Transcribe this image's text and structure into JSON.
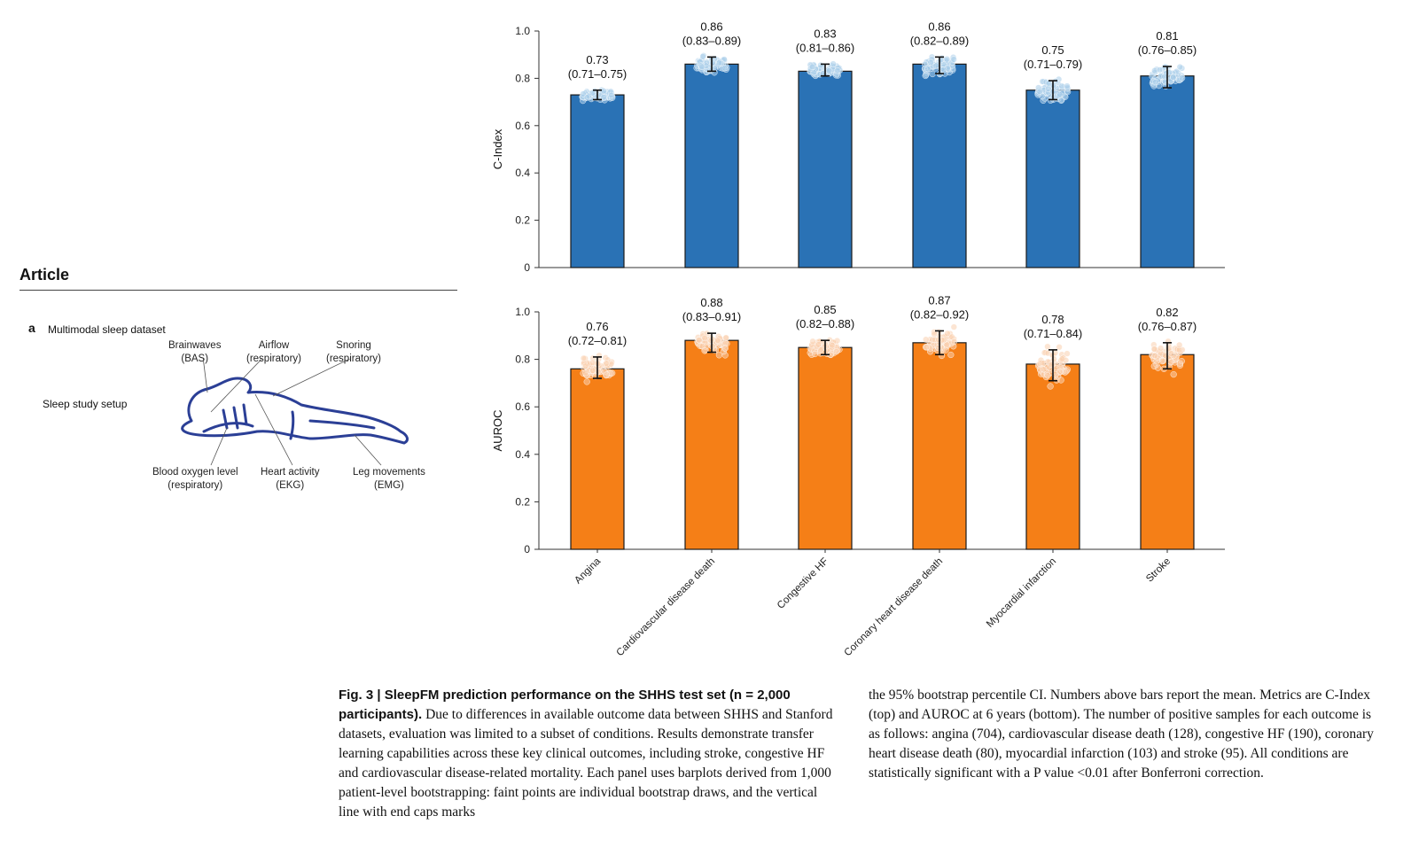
{
  "article": {
    "heading": "Article",
    "panel_letter": "a",
    "panel_title": "Multimodal sleep dataset",
    "setup_label": "Sleep study setup",
    "labels": {
      "brainwaves": [
        "Brainwaves",
        "(BAS)"
      ],
      "airflow": [
        "Airflow",
        "(respiratory)"
      ],
      "snoring": [
        "Snoring",
        "(respiratory)"
      ],
      "blood_oxygen": [
        "Blood oxygen level",
        "(respiratory)"
      ],
      "heart": [
        "Heart activity",
        "(EKG)"
      ],
      "leg": [
        "Leg movements",
        "(EMG)"
      ]
    }
  },
  "chart_data": [
    {
      "type": "bar",
      "categories": [
        "Angina",
        "Cardiovascular disease death",
        "Congestive HF",
        "Coronary heart disease death",
        "Myocardial infarction",
        "Stroke"
      ],
      "values": [
        0.73,
        0.86,
        0.83,
        0.86,
        0.75,
        0.81
      ],
      "ci_low": [
        0.71,
        0.83,
        0.81,
        0.82,
        0.71,
        0.76
      ],
      "ci_high": [
        0.75,
        0.89,
        0.86,
        0.89,
        0.79,
        0.85
      ],
      "value_labels": [
        "0.73",
        "0.86",
        "0.83",
        "0.86",
        "0.75",
        "0.81"
      ],
      "ci_labels": [
        "(0.71–0.75)",
        "(0.83–0.89)",
        "(0.81–0.86)",
        "(0.82–0.89)",
        "(0.71–0.79)",
        "(0.76–0.85)"
      ],
      "ylabel": "C-Index",
      "ylim": [
        0,
        1.0
      ],
      "yticks": [
        "0",
        "0.2",
        "0.4",
        "0.6",
        "0.8",
        "1.0"
      ],
      "bar_color": "#2a72b5",
      "point_color": "#a9cdea"
    },
    {
      "type": "bar",
      "categories": [
        "Angina",
        "Cardiovascular disease death",
        "Congestive HF",
        "Coronary heart disease death",
        "Myocardial infarction",
        "Stroke"
      ],
      "values": [
        0.76,
        0.88,
        0.85,
        0.87,
        0.78,
        0.82
      ],
      "ci_low": [
        0.72,
        0.83,
        0.82,
        0.82,
        0.71,
        0.76
      ],
      "ci_high": [
        0.81,
        0.91,
        0.88,
        0.92,
        0.84,
        0.87
      ],
      "value_labels": [
        "0.76",
        "0.88",
        "0.85",
        "0.87",
        "0.78",
        "0.82"
      ],
      "ci_labels": [
        "(0.72–0.81)",
        "(0.83–0.91)",
        "(0.82–0.88)",
        "(0.82–0.92)",
        "(0.71–0.84)",
        "(0.76–0.87)"
      ],
      "ylabel": "AUROC",
      "ylim": [
        0,
        1.0
      ],
      "yticks": [
        "0",
        "0.2",
        "0.4",
        "0.6",
        "0.8",
        "1.0"
      ],
      "bar_color": "#f57f17",
      "point_color": "#f9cfae"
    }
  ],
  "caption": {
    "title": "Fig. 3 | SleepFM prediction performance on the SHHS test set (n = 2,000 participants).",
    "left_text": "Due to differences in available outcome data between SHHS and Stanford datasets, evaluation was limited to a subset of conditions. Results demonstrate transfer learning capabilities across these key clinical outcomes, including stroke, congestive HF and cardiovascular disease-related mortality. Each panel uses barplots derived from 1,000 patient-level bootstrapping: faint points are individual bootstrap draws, and the vertical line with end caps marks",
    "right_text": "the 95% bootstrap percentile CI. Numbers above bars report the mean. Metrics are C-Index (top) and AUROC at 6 years (bottom). The number of positive samples for each outcome is as follows: angina (704), cardiovascular disease death (128), congestive HF (190), coronary heart disease death (80), myocardial infarction (103) and stroke (95). All conditions are statistically significant with a P value <0.01 after Bonferroni correction."
  }
}
